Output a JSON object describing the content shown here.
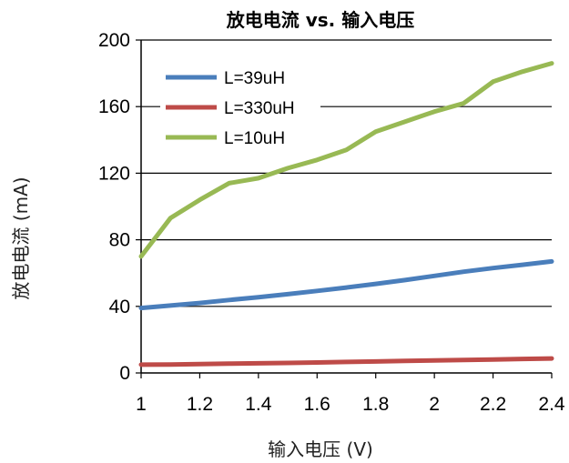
{
  "chart_data": {
    "type": "line",
    "title": "放电电流 vs. 输入电压",
    "xlabel": "输入电压 (V)",
    "ylabel": "放电电流 (mA)",
    "xlim": [
      1,
      2.4
    ],
    "ylim": [
      0,
      200
    ],
    "xticks": [
      "1",
      "1.2",
      "1.4",
      "1.6",
      "1.8",
      "2",
      "2.2",
      "2.4"
    ],
    "yticks": [
      "0",
      "40",
      "80",
      "120",
      "160",
      "200"
    ],
    "grid": true,
    "legend_position": "top-left",
    "series": [
      {
        "name": "L=39uH",
        "color": "#4a7ebb",
        "x": [
          1.0,
          1.1,
          1.2,
          1.3,
          1.4,
          1.5,
          1.6,
          1.7,
          1.8,
          1.9,
          2.0,
          2.1,
          2.2,
          2.3,
          2.4
        ],
        "y": [
          39,
          40.5,
          42,
          43.8,
          45.5,
          47.3,
          49.3,
          51.3,
          53.5,
          55.8,
          58.3,
          60.8,
          63,
          65,
          67
        ]
      },
      {
        "name": "L=330uH",
        "color": "#be4b48",
        "x": [
          1.0,
          1.1,
          1.2,
          1.3,
          1.4,
          1.5,
          1.6,
          1.7,
          1.8,
          1.9,
          2.0,
          2.1,
          2.2,
          2.3,
          2.4
        ],
        "y": [
          5,
          5.1,
          5.3,
          5.6,
          5.8,
          6.0,
          6.3,
          6.6,
          6.9,
          7.2,
          7.5,
          7.8,
          8.1,
          8.4,
          8.7
        ]
      },
      {
        "name": "L=10uH",
        "color": "#98b954",
        "x": [
          1.0,
          1.1,
          1.2,
          1.3,
          1.4,
          1.5,
          1.6,
          1.7,
          1.8,
          1.9,
          2.0,
          2.1,
          2.2,
          2.3,
          2.4
        ],
        "y": [
          70,
          93,
          104,
          114,
          117,
          123,
          128,
          134,
          145,
          151,
          157,
          162,
          175,
          181,
          186
        ]
      }
    ]
  }
}
